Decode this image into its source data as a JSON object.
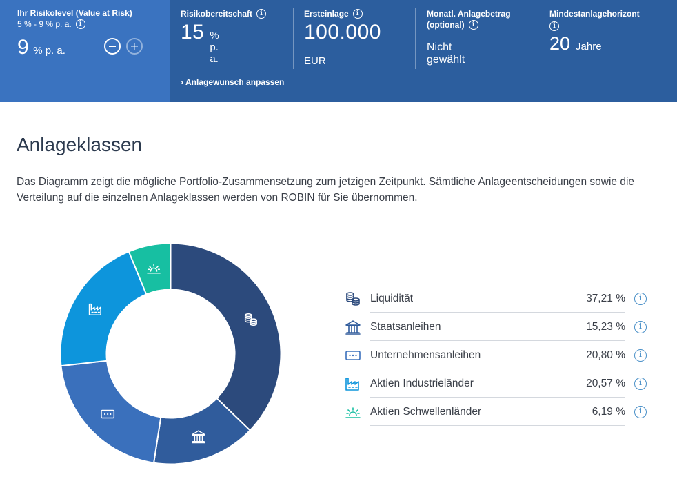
{
  "header": {
    "risk": {
      "title": "Ihr Risikolevel (Value at Risk)",
      "range": "5 % - 9 % p. a.",
      "value": "9",
      "unit": "% p. a."
    },
    "bereitschaft": {
      "label": "Risikobereitschaft",
      "value": "15",
      "unit": "% p. a."
    },
    "ersteinlage": {
      "label": "Ersteinlage",
      "value": "100.000",
      "unit": "EUR"
    },
    "monatlich": {
      "label_line1": "Monatl. Anlagebetrag",
      "label_line2": "(optional)",
      "value": "Nicht gewählt"
    },
    "horizont": {
      "label": "Mindestanlagehorizont",
      "value": "20",
      "unit": "Jahre"
    },
    "adjust_link": "Anlagewunsch anpassen"
  },
  "section": {
    "title": "Anlageklassen",
    "intro": "Das Diagramm zeigt die mögliche Portfolio-Zusammensetzung zum jetzigen Zeitpunkt. Sämtliche Anlageentscheidungen sowie die Verteilung auf die einzelnen Anlageklassen werden von ROBIN für Sie übernommen."
  },
  "chart_data": {
    "type": "pie",
    "categories": [
      "Liquidität",
      "Staatsanleihen",
      "Unternehmensanleihen",
      "Aktien Industrieländer",
      "Aktien Schwellenländer"
    ],
    "values": [
      37.21,
      15.23,
      20.8,
      20.57,
      6.19
    ],
    "value_labels": [
      "37,21 %",
      "15,23 %",
      "20,80 %",
      "20,57 %",
      "6,19 %"
    ],
    "colors": [
      "#2c4a7c",
      "#305c9c",
      "#3a70bc",
      "#0d95dc",
      "#17bfa2"
    ],
    "icons": [
      "coins-icon",
      "bank-icon",
      "bond-card-icon",
      "factory-icon",
      "sunrise-icon"
    ]
  }
}
